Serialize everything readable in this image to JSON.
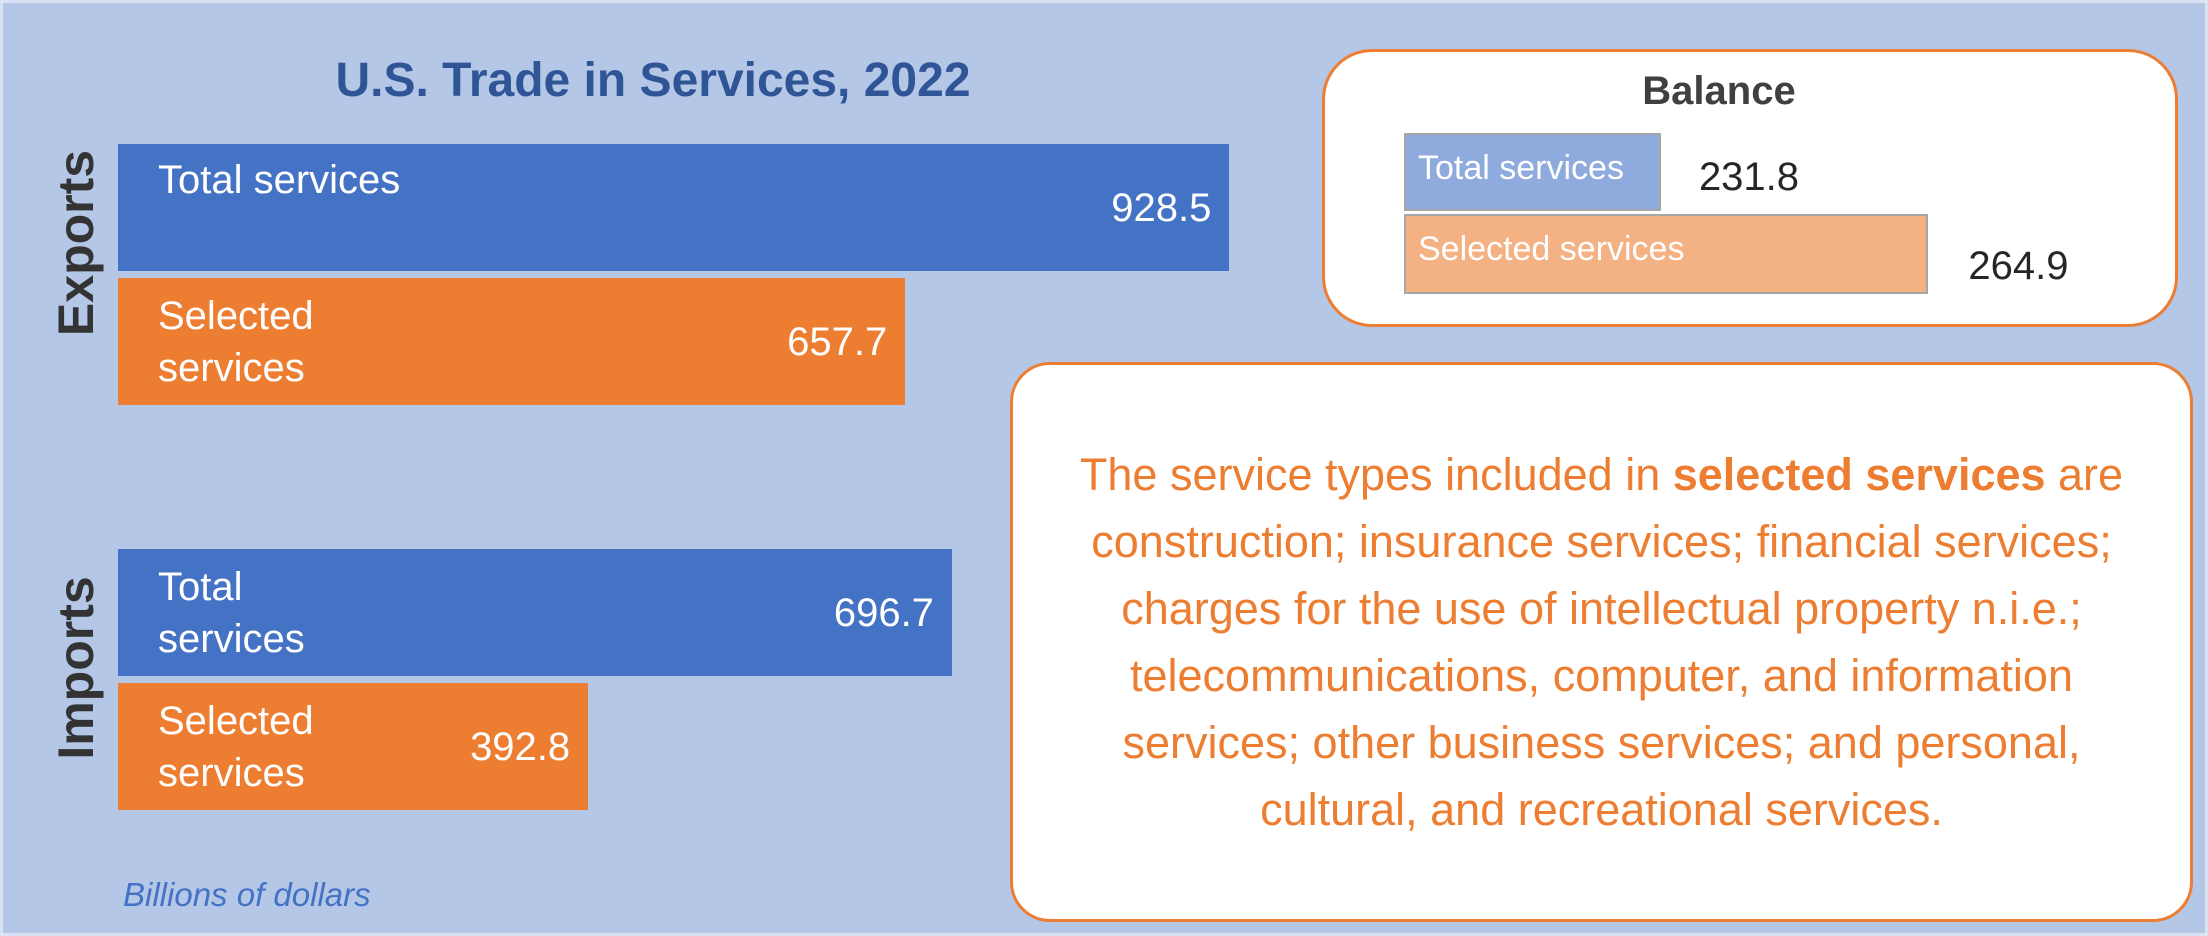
{
  "chart_data": {
    "type": "bar",
    "title": "U.S. Trade in Services, 2022",
    "groups": [
      {
        "name": "Exports",
        "categories": [
          "Total services",
          "Selected services"
        ],
        "values": [
          928.5,
          657.7
        ],
        "colors": [
          "#4472c4",
          "#ed7d31"
        ]
      },
      {
        "name": "Imports",
        "categories": [
          "Total services",
          "Selected services"
        ],
        "values": [
          696.7,
          392.8
        ],
        "colors": [
          "#4472c4",
          "#ed7d31"
        ]
      }
    ],
    "balance": {
      "title": "Balance",
      "categories": [
        "Total services",
        "Selected services"
      ],
      "values": [
        231.8,
        264.9
      ],
      "colors": [
        "#8faadc",
        "#f4b183"
      ]
    },
    "note": {
      "before": "The service types included in ",
      "bold": "selected services",
      "after": " are construction; insurance services; financial services; charges for the use of intellectual property n.i.e.; telecommunications, computer, and information services; other business services; and personal, cultural, and recreational services."
    },
    "unit_label": "Billions of dollars"
  }
}
